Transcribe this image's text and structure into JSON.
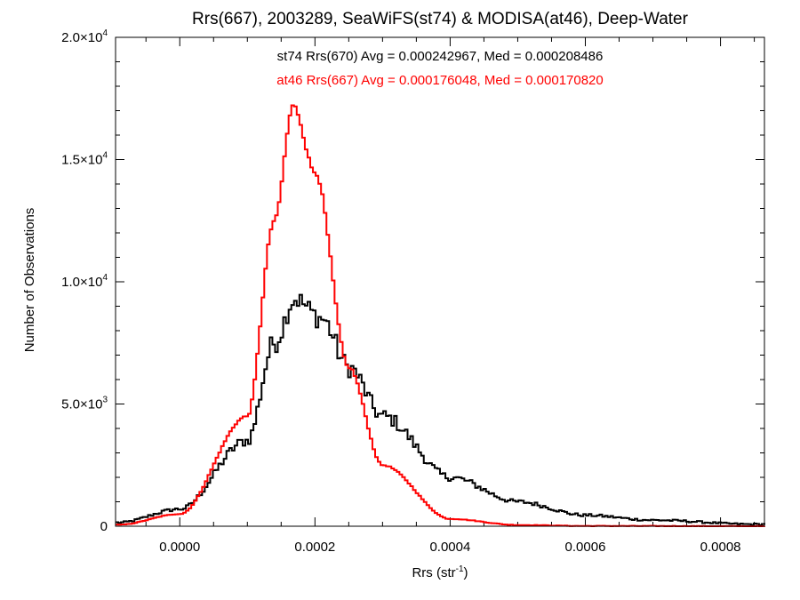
{
  "chart_data": {
    "type": "histogram-step",
    "title": "Rrs(667), 2003289, SeaWiFS(st74) & MODISA(at46), Deep-Water",
    "xlabel": "Rrs (str",
    "xlabel_sup": "-1",
    "xlabel_suffix": ")",
    "ylabel": "Number of Observations",
    "xlim": [
      -9.5e-05,
      0.000865
    ],
    "ylim": [
      0,
      20000
    ],
    "x_ticks": [
      {
        "value": 0.0,
        "label": "0.0000"
      },
      {
        "value": 0.0002,
        "label": "0.0002"
      },
      {
        "value": 0.0004,
        "label": "0.0004"
      },
      {
        "value": 0.0006,
        "label": "0.0006"
      },
      {
        "value": 0.0008,
        "label": "0.0008"
      }
    ],
    "y_ticks": [
      {
        "value": 0,
        "mant": "0",
        "exp": ""
      },
      {
        "value": 5000,
        "mant": "5.0×10",
        "exp": "3"
      },
      {
        "value": 10000,
        "mant": "1.0×10",
        "exp": "4"
      },
      {
        "value": 15000,
        "mant": "1.5×10",
        "exp": "4"
      },
      {
        "value": 20000,
        "mant": "2.0×10",
        "exp": "4"
      }
    ],
    "annotations": [
      {
        "text": "st74 Rrs(670) Avg = 0.000242967, Med = 0.000208486",
        "color": "#000000"
      },
      {
        "text": "at46 Rrs(667) Avg = 0.000176048, Med = 0.000170820",
        "color": "#ff0000"
      }
    ],
    "bin_width": 4e-06,
    "bin_start": -9.5e-05,
    "series": [
      {
        "color": "#000000",
        "shape": {
          "kind": "skewed",
          "peak": 0.00017,
          "amplitude": 9000,
          "sigma_left": 6.5e-05,
          "tail_right": 0.00018,
          "baseline_left": 200,
          "noise": 500,
          "bump": 9500
        },
        "key_points": [
          {
            "x": -9e-05,
            "y": 150
          },
          {
            "x": 0.0,
            "y": 700
          },
          {
            "x": 0.0001,
            "y": 3500
          },
          {
            "x": 0.00014,
            "y": 7500
          },
          {
            "x": 0.00017,
            "y": 9300
          },
          {
            "x": 0.00021,
            "y": 8500
          },
          {
            "x": 0.00025,
            "y": 6500
          },
          {
            "x": 0.0003,
            "y": 4500
          },
          {
            "x": 0.0004,
            "y": 2000
          },
          {
            "x": 0.0005,
            "y": 1000
          },
          {
            "x": 0.0006,
            "y": 450
          },
          {
            "x": 0.0007,
            "y": 250
          },
          {
            "x": 0.00085,
            "y": 80
          }
        ]
      },
      {
        "color": "#ff0000",
        "shape": {
          "kind": "peaked",
          "peak": 0.000168,
          "amplitude": 17200,
          "sigma_left": 4e-05,
          "sigma_right": 5.8e-05
        },
        "key_points": [
          {
            "x": -9e-05,
            "y": 60
          },
          {
            "x": 0.0,
            "y": 500
          },
          {
            "x": 0.0001,
            "y": 4500
          },
          {
            "x": 0.00014,
            "y": 12500
          },
          {
            "x": 0.000168,
            "y": 17200
          },
          {
            "x": 0.0002,
            "y": 14500
          },
          {
            "x": 0.00025,
            "y": 6500
          },
          {
            "x": 0.0003,
            "y": 2500
          },
          {
            "x": 0.0004,
            "y": 300
          },
          {
            "x": 0.0005,
            "y": 50
          },
          {
            "x": 0.0006,
            "y": 10
          },
          {
            "x": 0.00085,
            "y": 0
          }
        ]
      }
    ]
  }
}
